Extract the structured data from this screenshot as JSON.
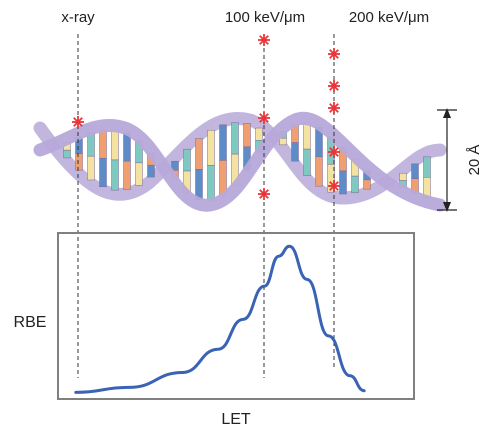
{
  "labels": {
    "xray": "x-ray",
    "let_100": "100 keV/μm",
    "let_200": "200 keV/μm",
    "scale": "20 Å",
    "y_axis": "RBE",
    "x_axis": "LET"
  },
  "colors": {
    "helix_backbone": "#b7a9d9",
    "helix_edge": "#8c7bbf",
    "hit_marker": "#e8353a",
    "curve": "#3a63b5",
    "frame": "#808080",
    "guide": "#333333",
    "base_pairs": [
      "#f0a070",
      "#f3e2a0",
      "#5e8cc8",
      "#7ec9c0",
      "#ffffff"
    ]
  },
  "chart_data": {
    "type": "line",
    "title": "",
    "xlabel": "LET",
    "ylabel": "RBE",
    "series": [
      {
        "x": [
          0.05,
          0.2,
          0.35,
          0.45,
          0.52,
          0.58,
          0.62,
          0.65,
          0.7,
          0.76,
          0.82,
          0.86
        ],
        "y": [
          0.04,
          0.07,
          0.16,
          0.3,
          0.48,
          0.68,
          0.86,
          0.92,
          0.72,
          0.38,
          0.14,
          0.05
        ]
      }
    ],
    "annotated_peak": "100 keV/μm"
  }
}
